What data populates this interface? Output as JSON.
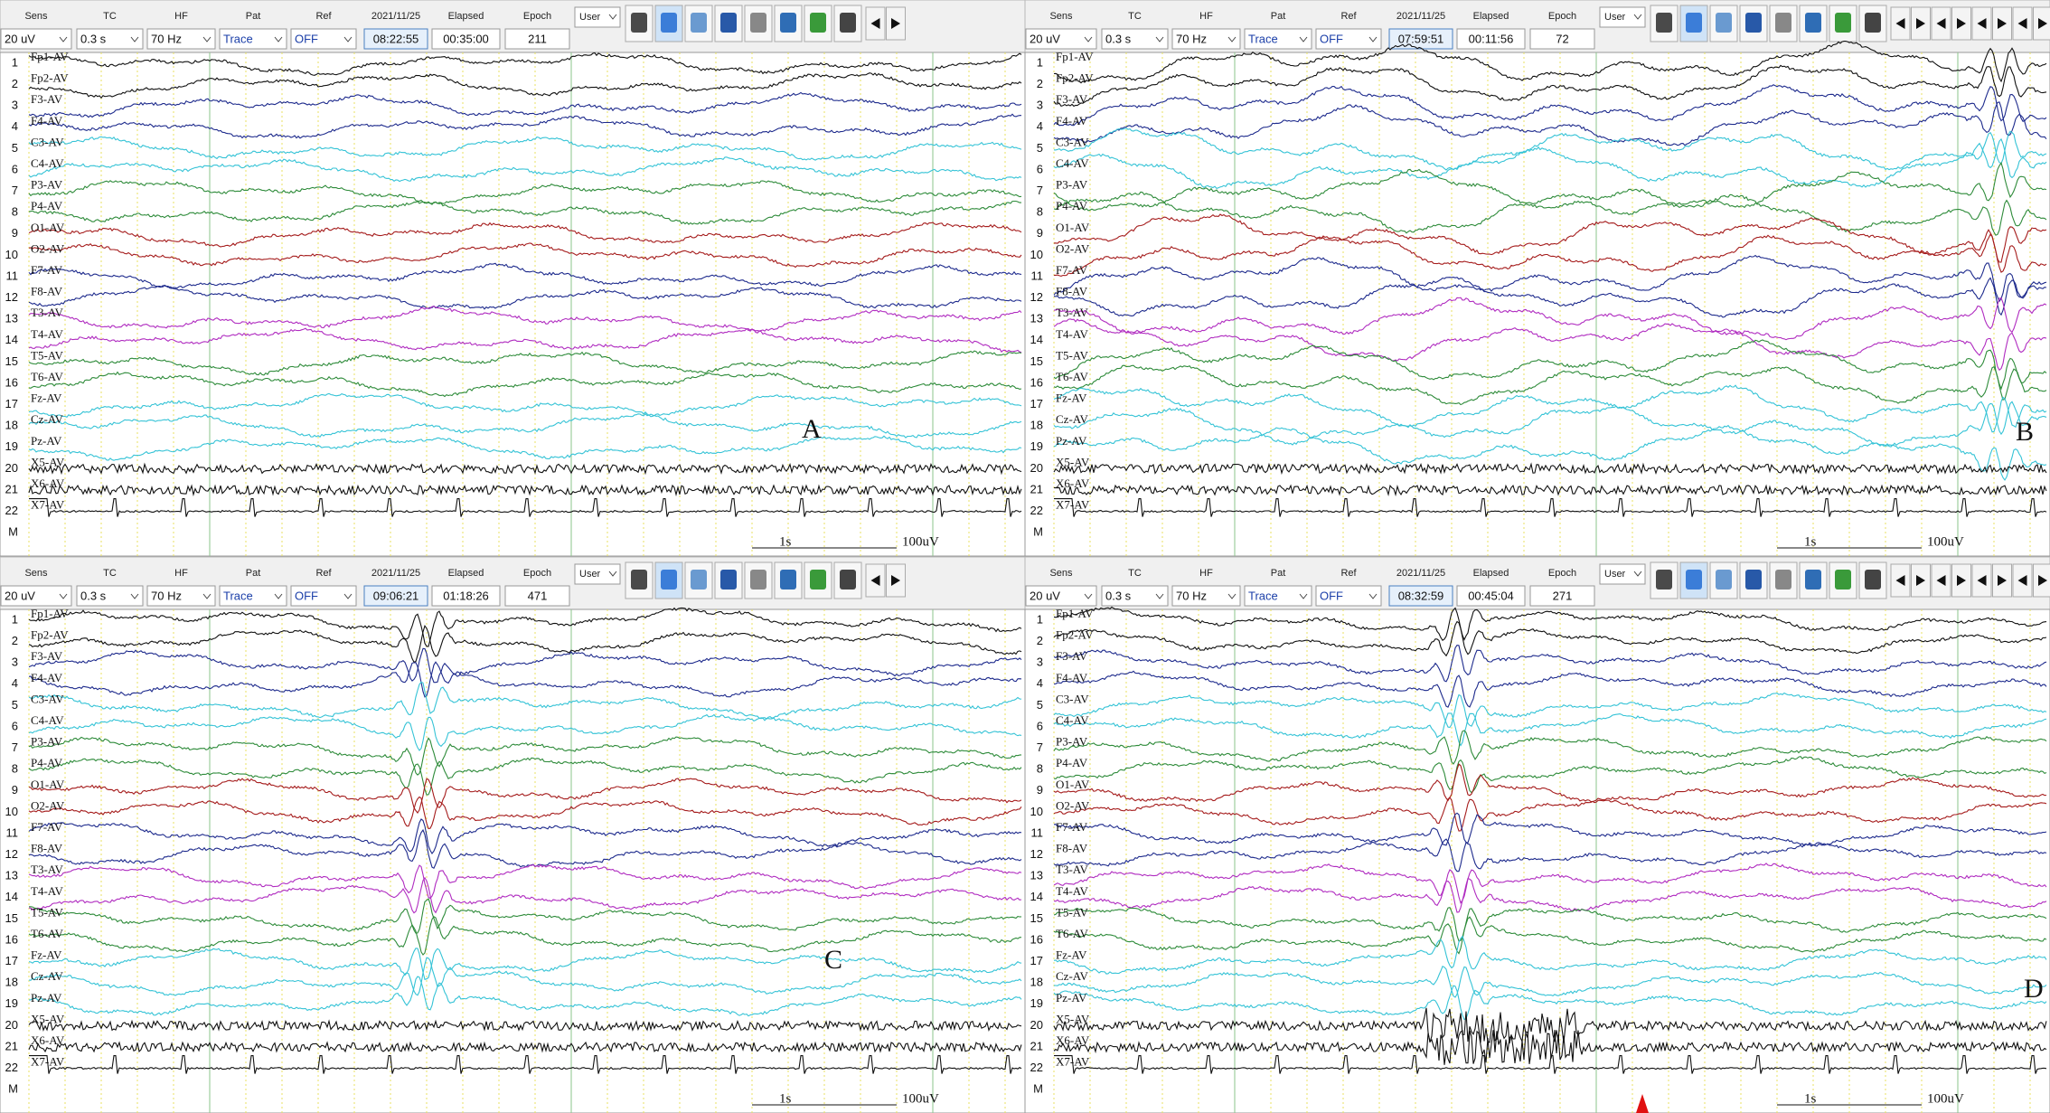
{
  "channel_numbers": [
    "1",
    "2",
    "3",
    "4",
    "5",
    "6",
    "7",
    "8",
    "9",
    "10",
    "11",
    "12",
    "13",
    "14",
    "15",
    "16",
    "17",
    "18",
    "19",
    "20",
    "21",
    "22",
    "M"
  ],
  "channels": [
    "Fp1-AV",
    "Fp2-AV",
    "F3-AV",
    "F4-AV",
    "C3-AV",
    "C4-AV",
    "P3-AV",
    "P4-AV",
    "O1-AV",
    "O2-AV",
    "F7-AV",
    "F8-AV",
    "T3-AV",
    "T4-AV",
    "T5-AV",
    "T6-AV",
    "Fz-AV",
    "Cz-AV",
    "Pz-AV",
    "X5-AV",
    "X6-AV",
    "X7-AV"
  ],
  "panels": [
    {
      "letter": "A",
      "toolbar": {
        "sens_label": "Sens",
        "sens": "20 uV",
        "tc_label": "TC",
        "tc": "0.3 s",
        "hf_label": "HF",
        "hf": "70 Hz",
        "pat_label": "Pat",
        "pat": "Trace",
        "ref_label": "Ref",
        "ref": "OFF",
        "date": "2021/11/25",
        "time": "08:22:55",
        "elapsed_label": "Elapsed",
        "elapsed": "00:35:00",
        "epoch_label": "Epoch",
        "epoch": "211",
        "user": "User"
      },
      "scale_time": "1s",
      "scale_amp": "100uV"
    },
    {
      "letter": "B",
      "toolbar": {
        "sens_label": "Sens",
        "sens": "20 uV",
        "tc_label": "TC",
        "tc": "0.3 s",
        "hf_label": "HF",
        "hf": "70 Hz",
        "pat_label": "Pat",
        "pat": "Trace",
        "ref_label": "Ref",
        "ref": "OFF",
        "date": "2021/11/25",
        "time": "07:59:51",
        "elapsed_label": "Elapsed",
        "elapsed": "00:11:56",
        "epoch_label": "Epoch",
        "epoch": "72",
        "user": "User"
      },
      "scale_time": "1s",
      "scale_amp": "100uV"
    },
    {
      "letter": "C",
      "toolbar": {
        "sens_label": "Sens",
        "sens": "20 uV",
        "tc_label": "TC",
        "tc": "0.3 s",
        "hf_label": "HF",
        "hf": "70 Hz",
        "pat_label": "Pat",
        "pat": "Trace",
        "ref_label": "Ref",
        "ref": "OFF",
        "date": "2021/11/25",
        "time": "09:06:21",
        "elapsed_label": "Elapsed",
        "elapsed": "01:18:26",
        "epoch_label": "Epoch",
        "epoch": "471",
        "user": "User"
      },
      "scale_time": "1s",
      "scale_amp": "100uV"
    },
    {
      "letter": "D",
      "toolbar": {
        "sens_label": "Sens",
        "sens": "20 uV",
        "tc_label": "TC",
        "tc": "0.3 s",
        "hf_label": "HF",
        "hf": "70 Hz",
        "pat_label": "Pat",
        "pat": "Trace",
        "ref_label": "Ref",
        "ref": "OFF",
        "date": "2021/11/25",
        "time": "08:32:59",
        "elapsed_label": "Elapsed",
        "elapsed": "00:45:04",
        "epoch_label": "Epoch",
        "epoch": "271",
        "user": "User"
      },
      "scale_time": "1s",
      "scale_amp": "100uV"
    }
  ]
}
